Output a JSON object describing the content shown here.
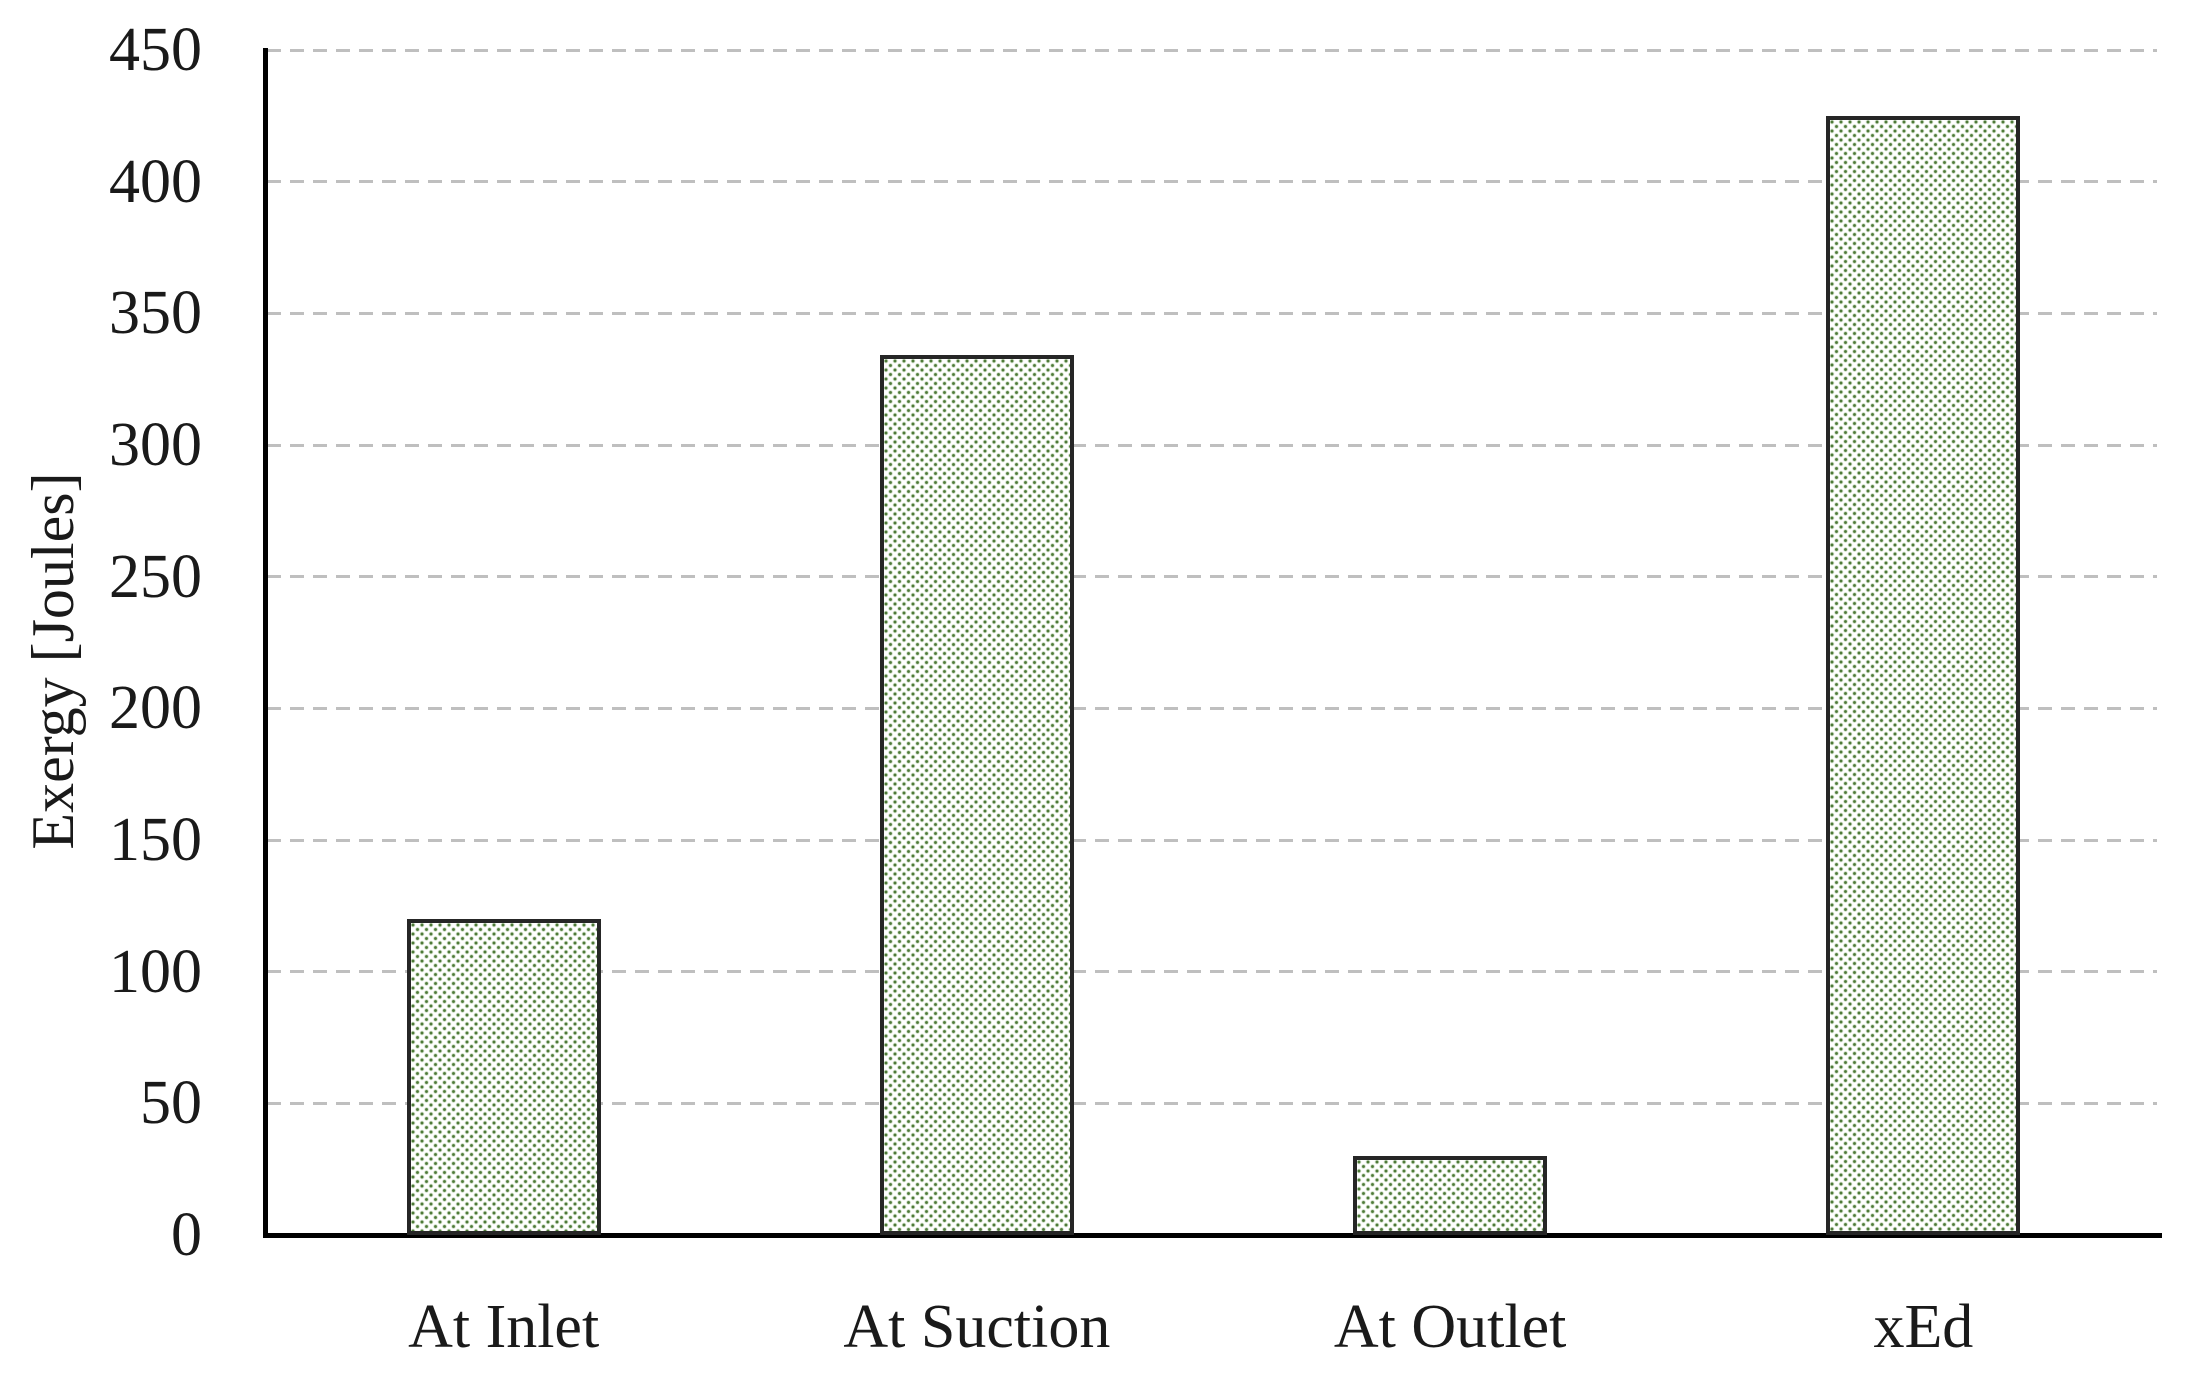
{
  "figure": {
    "background_color": "#ffffff",
    "text_color": "#1a1a1a",
    "axis_color": "#000000",
    "gridline_color": "#bfbfbf",
    "bar_border_color": "#262626",
    "bar_dot_color": "#4e7a38",
    "bar_fill_color": "#ffffff"
  },
  "chart_data": {
    "type": "bar",
    "title": "",
    "xlabel": "",
    "ylabel": "Exergy [Joules]",
    "categories": [
      "At Inlet",
      "At Suction",
      "At Outlet",
      "xEd"
    ],
    "values": [
      120,
      334,
      30,
      425
    ],
    "series": [
      {
        "name": "Exergy",
        "values": [
          120,
          334,
          30,
          425
        ]
      }
    ],
    "ylim": [
      0,
      450
    ],
    "ytick_step": 50,
    "yticks": [
      450,
      400,
      350,
      300,
      250,
      200,
      150,
      100,
      50,
      0
    ],
    "grid": {
      "horizontal": true,
      "vertical": false,
      "style": "dashed",
      "color": "#bfbfbf"
    },
    "legend": "none",
    "bar_pattern": "small green dots on white (offset dot grid), dark border"
  }
}
